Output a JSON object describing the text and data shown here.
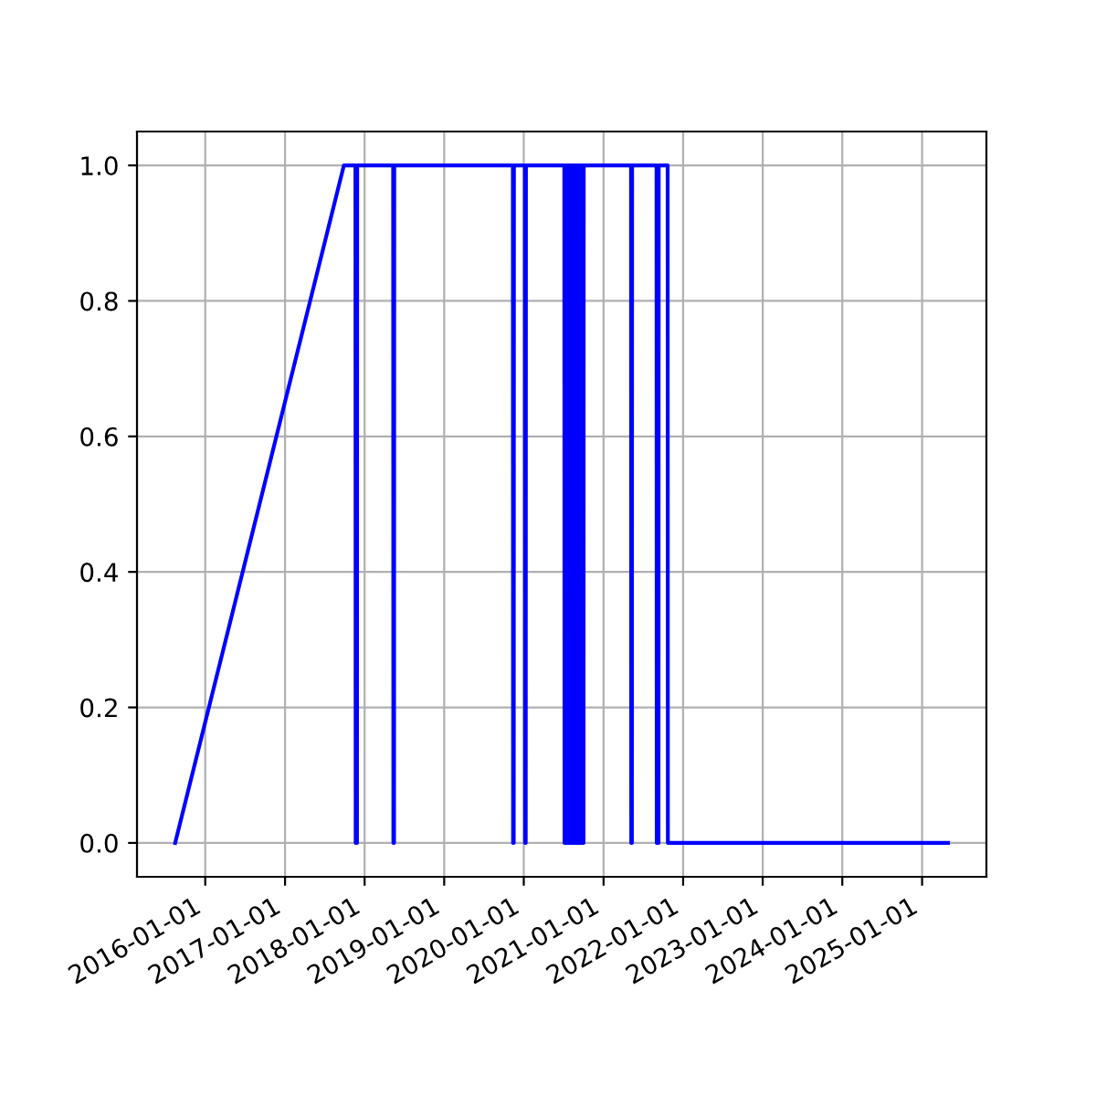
{
  "chart_data": {
    "type": "line",
    "x": [
      "2015-08-16",
      "2017-09-28",
      "2017-11-20",
      "2017-11-21",
      "2017-11-27",
      "2017-11-28",
      "2018-05-12",
      "2018-05-13",
      "2018-05-16",
      "2018-05-17",
      "2019-11-12",
      "2019-11-13",
      "2019-11-16",
      "2019-11-17",
      "2020-01-06",
      "2020-01-07",
      "2020-01-10",
      "2020-01-11",
      "2020-07-05",
      "2020-07-06",
      "2020-07-12",
      "2020-07-13",
      "2020-07-19",
      "2020-07-20",
      "2020-07-26",
      "2020-07-27",
      "2020-08-02",
      "2020-08-03",
      "2020-08-09",
      "2020-08-10",
      "2020-08-16",
      "2020-08-17",
      "2020-08-23",
      "2020-08-24",
      "2020-08-30",
      "2020-08-31",
      "2020-09-06",
      "2020-09-07",
      "2020-09-13",
      "2020-09-14",
      "2020-09-20",
      "2020-09-21",
      "2020-09-27",
      "2020-09-28",
      "2020-10-01",
      "2020-10-02",
      "2021-05-07",
      "2021-05-08",
      "2021-05-11",
      "2021-05-12",
      "2021-09-01",
      "2021-09-02",
      "2021-09-10",
      "2021-09-11",
      "2021-10-22",
      "2021-10-23",
      "2025-04-30"
    ],
    "series": [
      {
        "color": "#0000ff",
        "values": [
          0,
          1,
          1,
          0,
          0,
          1,
          1,
          0,
          0,
          1,
          1,
          0,
          0,
          1,
          1,
          0,
          0,
          1,
          1,
          0,
          0,
          1,
          0,
          1,
          0,
          1,
          0,
          1,
          0,
          1,
          0,
          1,
          0,
          1,
          0,
          1,
          0,
          1,
          0,
          1,
          0,
          1,
          0,
          1,
          0,
          1,
          1,
          0,
          0,
          1,
          1,
          0,
          0,
          1,
          1,
          0,
          0
        ]
      }
    ],
    "xlim": [
      "2015-02-22",
      "2025-10-23"
    ],
    "xticks": [
      "2016-01-01",
      "2017-01-01",
      "2018-01-01",
      "2019-01-01",
      "2020-01-01",
      "2021-01-01",
      "2022-01-01",
      "2023-01-01",
      "2024-01-01",
      "2025-01-01"
    ],
    "ylim": [
      -0.05,
      1.05
    ],
    "yticks": [
      {
        "value": 0,
        "label": "0.0"
      },
      {
        "value": 0.2,
        "label": "0.2"
      },
      {
        "value": 0.4,
        "label": "0.4"
      },
      {
        "value": 0.6,
        "label": "0.6"
      },
      {
        "value": 0.8,
        "label": "0.8"
      },
      {
        "value": 1,
        "label": "1.0"
      }
    ],
    "grid": true
  }
}
